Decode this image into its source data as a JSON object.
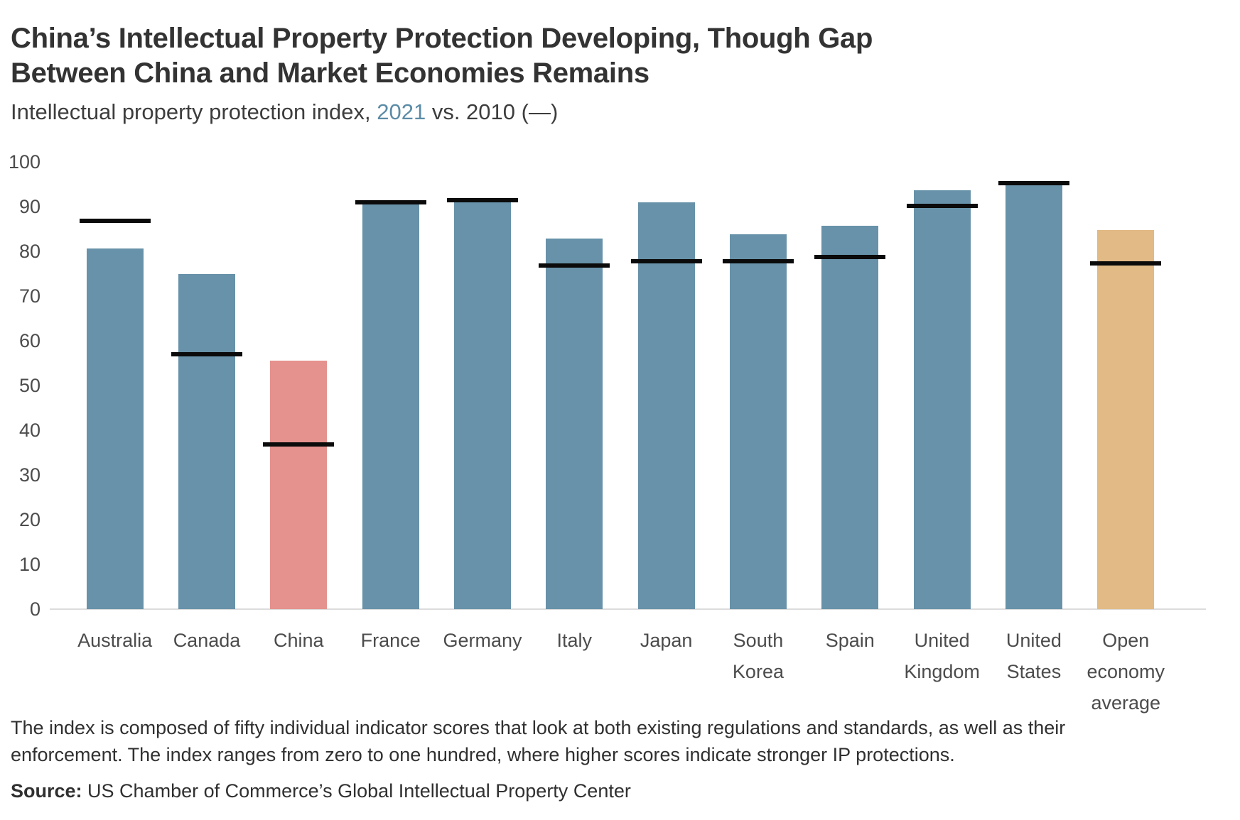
{
  "header": {
    "title_lines": [
      "China’s Intellectual Property Protection Developing, Though Gap",
      "Between China and Market Economies Remains"
    ],
    "subtitle_prefix": "Intellectual property protection index, ",
    "subtitle_year": "2021",
    "subtitle_suffix": " vs. 2010 (—)"
  },
  "chart_data": {
    "type": "bar",
    "title": "China’s Intellectual Property Protection Developing, Though Gap Between China and Market Economies Remains",
    "subtitle": "Intellectual property protection index, 2021 vs. 2010 (—)",
    "categories": [
      "Australia",
      "Canada",
      "China",
      "France",
      "Germany",
      "Italy",
      "Japan",
      "South Korea",
      "Spain",
      "United Kingdom",
      "United States",
      "Open economy average"
    ],
    "category_label_lines": [
      [
        "Australia"
      ],
      [
        "Canada"
      ],
      [
        "China"
      ],
      [
        "France"
      ],
      [
        "Germany"
      ],
      [
        "Italy"
      ],
      [
        "Japan"
      ],
      [
        "South",
        "Korea"
      ],
      [
        "Spain"
      ],
      [
        "United",
        "Kingdom"
      ],
      [
        "United",
        "States"
      ],
      [
        "Open",
        "economy",
        "average"
      ]
    ],
    "series": [
      {
        "name": "2021",
        "marker": "bar",
        "values": [
          80.6,
          75.0,
          55.5,
          91.3,
          91.8,
          82.9,
          91.0,
          83.8,
          85.7,
          93.6,
          94.8,
          84.8
        ]
      },
      {
        "name": "2010",
        "marker": "dash",
        "values": [
          86.8,
          57.0,
          36.8,
          91.0,
          91.5,
          76.8,
          77.8,
          77.8,
          78.8,
          90.2,
          95.3,
          77.3
        ]
      }
    ],
    "ylim": [
      0,
      100
    ],
    "yticks": [
      100,
      90,
      80,
      70,
      60,
      50,
      40,
      30,
      20,
      10,
      0
    ],
    "grid": false,
    "legend_position": "in-subtitle",
    "colors": {
      "bar_default": "#6792a9",
      "bar_china": "#e5918d",
      "bar_open_average": "#e2ba85",
      "dash": "#0b0b0b",
      "subtitle_year": "#5b8ca6"
    },
    "bar_colors": [
      "#6792a9",
      "#6792a9",
      "#e5918d",
      "#6792a9",
      "#6792a9",
      "#6792a9",
      "#6792a9",
      "#6792a9",
      "#6792a9",
      "#6792a9",
      "#6792a9",
      "#e2ba85"
    ]
  },
  "footer": {
    "note_lines": [
      "The index is composed of fifty individual indicator scores that look at both existing regulations and standards, as well as their",
      "enforcement. The index ranges from zero to one hundred, where higher scores indicate stronger IP protections."
    ],
    "source_label": "Source:",
    "source_text": " US Chamber of Commerce’s Global Intellectual Property Center"
  }
}
